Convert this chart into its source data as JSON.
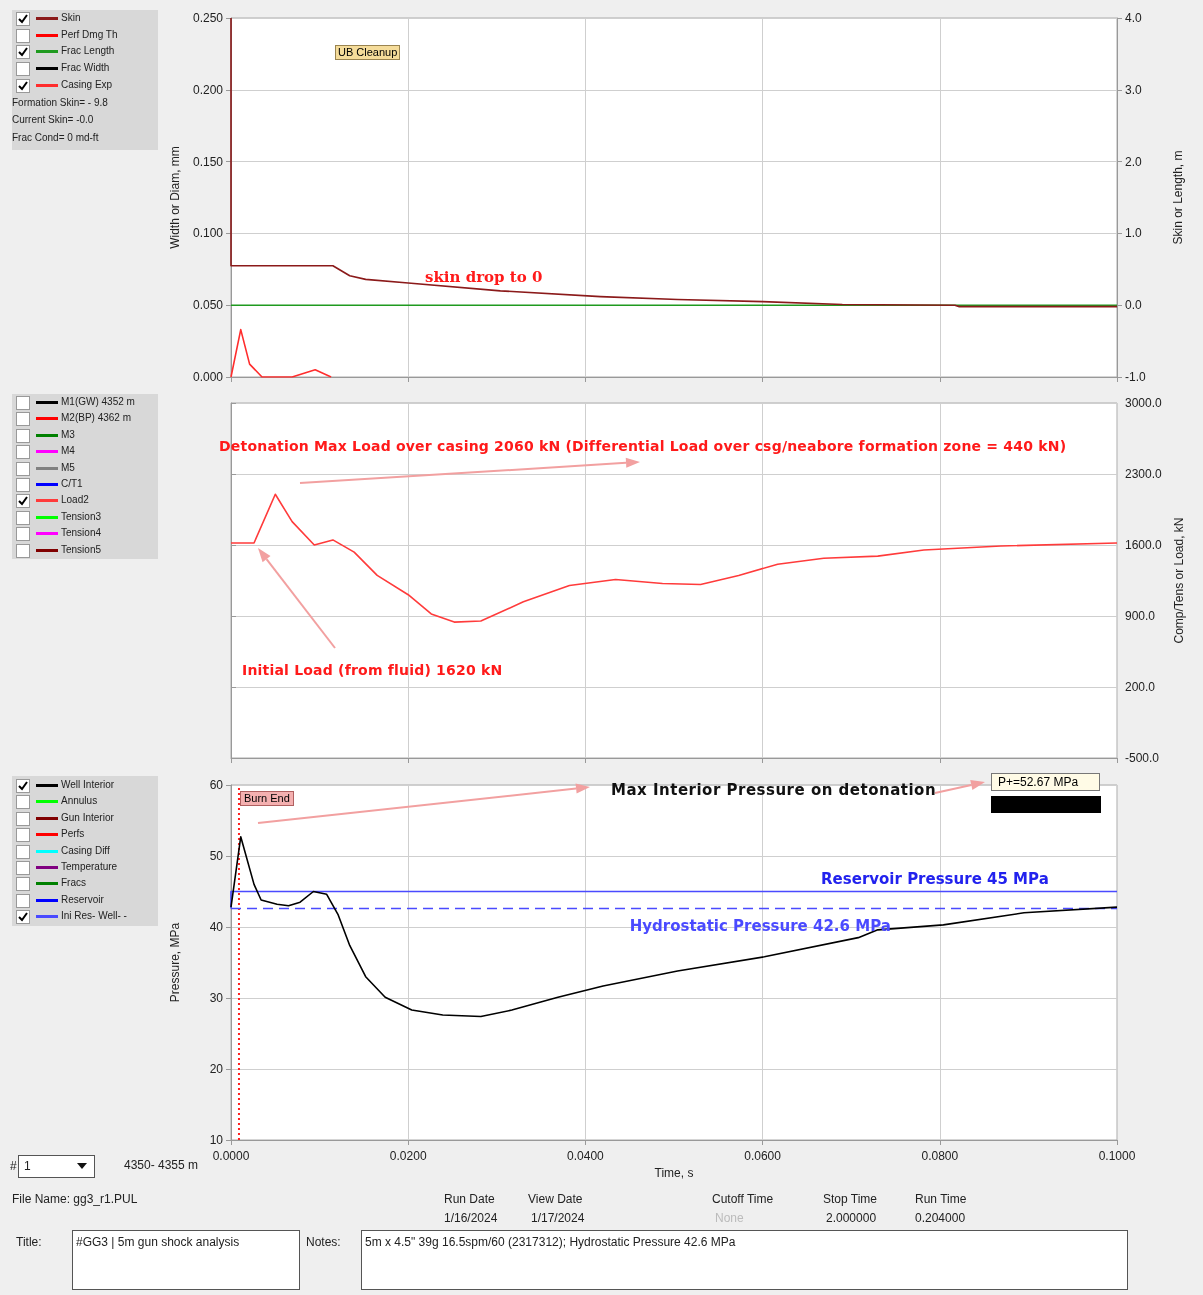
{
  "chart_data": [
    {
      "type": "line",
      "ylabel": "Width or Diam, mm",
      "y2label": "Skin or Length, m",
      "xlim": [
        0,
        0.1
      ],
      "xticks": [
        0,
        0.02,
        0.04,
        0.06,
        0.08,
        0.1
      ],
      "ylim": [
        0,
        0.25
      ],
      "yticks": [
        {
          "value": 0,
          "label": "0.000"
        },
        {
          "value": 0.05,
          "label": "0.050"
        },
        {
          "value": 0.1,
          "label": "0.100"
        },
        {
          "value": 0.15,
          "label": "0.150"
        },
        {
          "value": 0.2,
          "label": "0.200"
        },
        {
          "value": 0.25,
          "label": "0.250"
        }
      ],
      "y2lim": [
        -1,
        4
      ],
      "y2ticks": [
        {
          "value": -1,
          "label": "-1.0"
        },
        {
          "value": 0,
          "label": "0.0"
        },
        {
          "value": 1,
          "label": "1.0"
        },
        {
          "value": 2,
          "label": "2.0"
        },
        {
          "value": 3,
          "label": "3.0"
        },
        {
          "value": 4,
          "label": "4.0"
        }
      ],
      "tick_labels": "y",
      "grid": true,
      "legend": "left",
      "annotations": [
        "UB Cleanup",
        "skin drop to 0",
        "Formation Skin= - 9.8",
        "Current Skin= -0.0",
        "Frac Cond= 0 md-ft"
      ],
      "series": [
        {
          "name": "Skin",
          "color": "#8b1a1a",
          "axis": "y2",
          "x": [
            0,
            0,
            0.0115,
            0.0134,
            0.0152,
            0.02,
            0.0304,
            0.0417,
            0.0504,
            0.06,
            0.069,
            0.0817,
            0.0822,
            0.1
          ],
          "values": [
            4.0,
            0.55,
            0.55,
            0.41,
            0.36,
            0.31,
            0.2,
            0.12,
            0.08,
            0.05,
            0.01,
            0.0,
            -0.02,
            -0.02
          ]
        },
        {
          "name": "Perf Dmg Th",
          "color": "#ff0000"
        },
        {
          "name": "Frac Length",
          "color": "#1f9a1f",
          "axis": "y2",
          "x": [
            0,
            0.1
          ],
          "values": [
            0,
            0
          ]
        },
        {
          "name": "Frac Width",
          "color": "#000000"
        },
        {
          "name": "Casing Exp",
          "color": "#ff2d2d",
          "x": [
            0,
            0.0011,
            0.0021,
            0.0035,
            0.0069,
            0.0095,
            0.0113
          ],
          "values": [
            0,
            0.033,
            0.009,
            0,
            0,
            0.005,
            0
          ]
        }
      ]
    },
    {
      "type": "line",
      "y2label": "Comp/Tens or Load, kN",
      "xlim": [
        0,
        0.1
      ],
      "xticks": [
        0,
        0.02,
        0.04,
        0.06,
        0.08,
        0.1
      ],
      "y2lim": [
        -500,
        3000
      ],
      "y2ticks": [
        {
          "value": -500,
          "label": "-500.0"
        },
        {
          "value": 200,
          "label": "200.0"
        },
        {
          "value": 900,
          "label": "900.0"
        },
        {
          "value": 1600,
          "label": "1600.0"
        },
        {
          "value": 2300,
          "label": "2300.0"
        },
        {
          "value": 3000,
          "label": "3000.0"
        }
      ],
      "tick_labels": "y",
      "grid": true,
      "legend": "left",
      "annotations": [
        "Detonation Max Load over casing 2060 kN (Differential Load over csg/neabore formation zone = 440 kN)",
        "Initial Load (from fluid) 1620 kN"
      ],
      "series": [
        {
          "name": "M1(GW) 4352 m",
          "color": "#000000"
        },
        {
          "name": "M2(BP) 4362 m",
          "color": "#ff0000"
        },
        {
          "name": "M3",
          "color": "#008000"
        },
        {
          "name": "M4",
          "color": "#ff00ff"
        },
        {
          "name": "M5",
          "color": "#808080"
        },
        {
          "name": "C/T1",
          "color": "#0000ff"
        },
        {
          "name": "Load2",
          "color": "#ff3b3b",
          "axis": "y2",
          "x": [
            0,
            0.0026,
            0.005,
            0.0069,
            0.0094,
            0.0115,
            0.0139,
            0.0165,
            0.02,
            0.0226,
            0.0252,
            0.0282,
            0.033,
            0.0382,
            0.0434,
            0.0487,
            0.053,
            0.0573,
            0.0617,
            0.0669,
            0.073,
            0.0782,
            0.0869,
            0.1
          ],
          "values": [
            1620,
            1620,
            2100,
            1830,
            1600,
            1650,
            1530,
            1300,
            1110,
            920,
            840,
            850,
            1040,
            1200,
            1260,
            1220,
            1210,
            1300,
            1410,
            1470,
            1490,
            1550,
            1590,
            1620
          ]
        },
        {
          "name": "Tension3",
          "color": "#00ff00"
        },
        {
          "name": "Tension4",
          "color": "#ff00ff"
        },
        {
          "name": "Tension5",
          "color": "#800000"
        }
      ]
    },
    {
      "type": "line",
      "xlabel": "Time, s",
      "ylabel": "Pressure, MPa",
      "xlim": [
        0,
        0.1
      ],
      "xticks": [
        {
          "value": 0,
          "label": "0.0000"
        },
        {
          "value": 0.02,
          "label": "0.0200"
        },
        {
          "value": 0.04,
          "label": "0.0400"
        },
        {
          "value": 0.06,
          "label": "0.0600"
        },
        {
          "value": 0.08,
          "label": "0.0800"
        },
        {
          "value": 0.1,
          "label": "0.1000"
        }
      ],
      "ylim": [
        10,
        60
      ],
      "yticks": [
        10,
        20,
        30,
        40,
        50,
        60
      ],
      "grid": true,
      "legend": "left",
      "ref_lines": [
        {
          "axis": "x",
          "value": 0.0009,
          "label": "Burn End",
          "color": "#ff2020",
          "line_style": "dotted"
        },
        {
          "axis": "y",
          "value": 42.6,
          "label": "Hydrostatic Pressure 42.6 MPa",
          "color": "#4a4aff",
          "line_style": "dashed"
        }
      ],
      "annotations": [
        "Max Interior Pressure on detonation",
        "P+=52.67 MPa",
        {
          "text": "Reservoir Pressure 45 MPa",
          "x": 0.0666,
          "y": 45
        },
        "#",
        "1",
        "4350- 4355 m",
        "File Name: gg3_r1.PUL",
        "Run Date",
        "1/16/2024",
        "View Date",
        "1/17/2024",
        "Cutoff Time",
        "None",
        "Stop Time",
        "2.000000",
        "Run Time",
        "0.204000",
        "Title:",
        "#GG3 | 5m gun shock analysis",
        "Notes:",
        "5m x 4.5\" 39g 16.5spm/60 (2317312); Hydrostatic Pressure 42.6 MPa"
      ],
      "series": [
        {
          "name": "Well Interior",
          "color": "#000000",
          "x": [
            0,
            0.0011,
            0.0026,
            0.0034,
            0.0052,
            0.0065,
            0.0078,
            0.0093,
            0.0108,
            0.0121,
            0.0134,
            0.0152,
            0.0174,
            0.0204,
            0.0239,
            0.0282,
            0.0317,
            0.0369,
            0.042,
            0.0504,
            0.0602,
            0.0708,
            0.073,
            0.0804,
            0.0895,
            0.1
          ],
          "values": [
            42.8,
            52.7,
            46.0,
            43.8,
            43.2,
            43.0,
            43.5,
            45.0,
            44.6,
            41.7,
            37.4,
            33.0,
            30.1,
            28.3,
            27.6,
            27.4,
            28.3,
            30.1,
            31.7,
            33.8,
            35.8,
            38.5,
            39.6,
            40.3,
            42.0,
            42.8
          ]
        },
        {
          "name": "Annulus",
          "color": "#00ff00"
        },
        {
          "name": "Gun Interior",
          "color": "#800000"
        },
        {
          "name": "Perfs",
          "color": "#ff0000"
        },
        {
          "name": "Casing Diff",
          "color": "#00ffff"
        },
        {
          "name": "Temperature",
          "color": "#800080"
        },
        {
          "name": "Fracs",
          "color": "#008000"
        },
        {
          "name": "Reservoir",
          "color": "#0000ff"
        },
        {
          "name": "Ini Res- Well- -",
          "color": "#4a4aff",
          "x": [
            0,
            0,
            0.1
          ],
          "values": [
            42.6,
            45,
            45
          ]
        }
      ]
    }
  ]
}
